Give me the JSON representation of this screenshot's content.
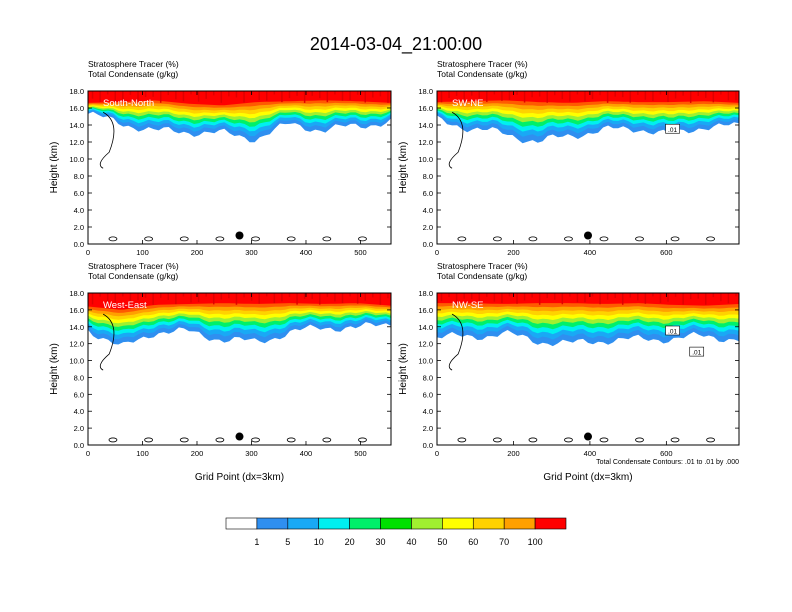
{
  "title": "2014-03-04_21:00:00",
  "colors": {
    "levels": [
      "#ffffff",
      "#2f8ff0",
      "#19a9f5",
      "#00f0f0",
      "#00f06a",
      "#00e000",
      "#a0f030",
      "#ffff00",
      "#ffd200",
      "#ffa000",
      "#ff5a00",
      "#ff0000"
    ],
    "contour": "#000000"
  },
  "colorbar": {
    "labels": [
      "1",
      "5",
      "10",
      "20",
      "30",
      "40",
      "50",
      "60",
      "70",
      "100"
    ]
  },
  "footnote": "Total Condensate Contours: .01 to .01 by .000",
  "chart_data": [
    {
      "type": "heatmap",
      "variable_labels": [
        "Stratosphere Tracer   (%)",
        "Total Condensate   (g/kg)"
      ],
      "panel_label": "South-North",
      "ylabel": "Height (km)",
      "xlabel": "",
      "xlim": [
        0,
        556
      ],
      "ylim": [
        0,
        18
      ],
      "x_ticks": [
        "0",
        "100",
        "200",
        "300",
        "400",
        "500"
      ],
      "y_ticks": [
        "0.0",
        "2.0",
        "4.0",
        "6.0",
        "8.0",
        "10.0",
        "12.0",
        "14.0",
        "16.0",
        "18.0"
      ],
      "tracer_100_base_km": [
        16.6,
        16.7,
        16.9,
        16.5,
        16.3,
        16.7,
        16.8,
        16.9,
        16.8,
        16.6
      ],
      "tracer_1_base_km": [
        15.3,
        14.2,
        13.3,
        13.2,
        13.0,
        12.4,
        14.1,
        13.4,
        13.9,
        14.4
      ],
      "dot": {
        "x": 278,
        "y": 1.0
      },
      "contour_labels": []
    },
    {
      "type": "heatmap",
      "variable_labels": [
        "Stratosphere Tracer   (%)",
        "Total Condensate   (g/kg)"
      ],
      "panel_label": "SW-NE",
      "ylabel": "Height (km)",
      "xlabel": "",
      "xlim": [
        0,
        790
      ],
      "ylim": [
        0,
        18
      ],
      "x_ticks": [
        "0",
        "200",
        "400",
        "600"
      ],
      "y_ticks": [
        "0.0",
        "2.0",
        "4.0",
        "6.0",
        "8.0",
        "10.0",
        "12.0",
        "14.0",
        "16.0",
        "18.0"
      ],
      "tracer_100_base_km": [
        16.7,
        16.8,
        16.9,
        16.7,
        16.6,
        16.8,
        16.7,
        16.7,
        16.8,
        16.6
      ],
      "tracer_1_base_km": [
        14.6,
        13.6,
        13.0,
        12.0,
        12.8,
        13.4,
        13.6,
        12.8,
        13.9,
        13.8
      ],
      "dot": {
        "x": 395,
        "y": 1.0
      },
      "contour_labels": [
        ".01"
      ]
    },
    {
      "type": "heatmap",
      "variable_labels": [
        "Stratosphere Tracer   (%)",
        "Total Condensate   (g/kg)"
      ],
      "panel_label": "West-East",
      "ylabel": "Height (km)",
      "xlabel": "Grid Point (dx=3km)",
      "xlim": [
        0,
        556
      ],
      "ylim": [
        0,
        18
      ],
      "x_ticks": [
        "0",
        "100",
        "200",
        "300",
        "400",
        "500"
      ],
      "y_ticks": [
        "0.0",
        "2.0",
        "4.0",
        "6.0",
        "8.0",
        "10.0",
        "12.0",
        "14.0",
        "16.0",
        "18.0"
      ],
      "tracer_100_base_km": [
        16.4,
        16.0,
        16.6,
        16.7,
        16.8,
        16.7,
        16.8,
        16.7,
        16.8,
        16.5
      ],
      "tracer_1_base_km": [
        13.7,
        11.5,
        13.4,
        13.4,
        12.5,
        12.2,
        13.3,
        14.0,
        13.8,
        14.5
      ],
      "dot": {
        "x": 278,
        "y": 1.0
      },
      "contour_labels": []
    },
    {
      "type": "heatmap",
      "variable_labels": [
        "Stratosphere Tracer   (%)",
        "Total Condensate   (g/kg)"
      ],
      "panel_label": "NW-SE",
      "ylabel": "Height (km)",
      "xlabel": "Grid Point (dx=3km)",
      "xlim": [
        0,
        790
      ],
      "ylim": [
        0,
        18
      ],
      "x_ticks": [
        "0",
        "200",
        "400",
        "600"
      ],
      "y_ticks": [
        "0.0",
        "2.0",
        "4.0",
        "6.0",
        "8.0",
        "10.0",
        "12.0",
        "14.0",
        "16.0",
        "18.0"
      ],
      "tracer_100_base_km": [
        16.8,
        16.8,
        16.7,
        16.8,
        16.8,
        16.7,
        16.8,
        16.6,
        16.5,
        16.7
      ],
      "tracer_1_base_km": [
        12.8,
        12.8,
        13.2,
        12.3,
        12.0,
        12.4,
        12.5,
        12.6,
        12.9,
        12.5
      ],
      "dot": {
        "x": 395,
        "y": 1.0
      },
      "contour_labels": [
        ".01",
        ".01"
      ]
    }
  ]
}
